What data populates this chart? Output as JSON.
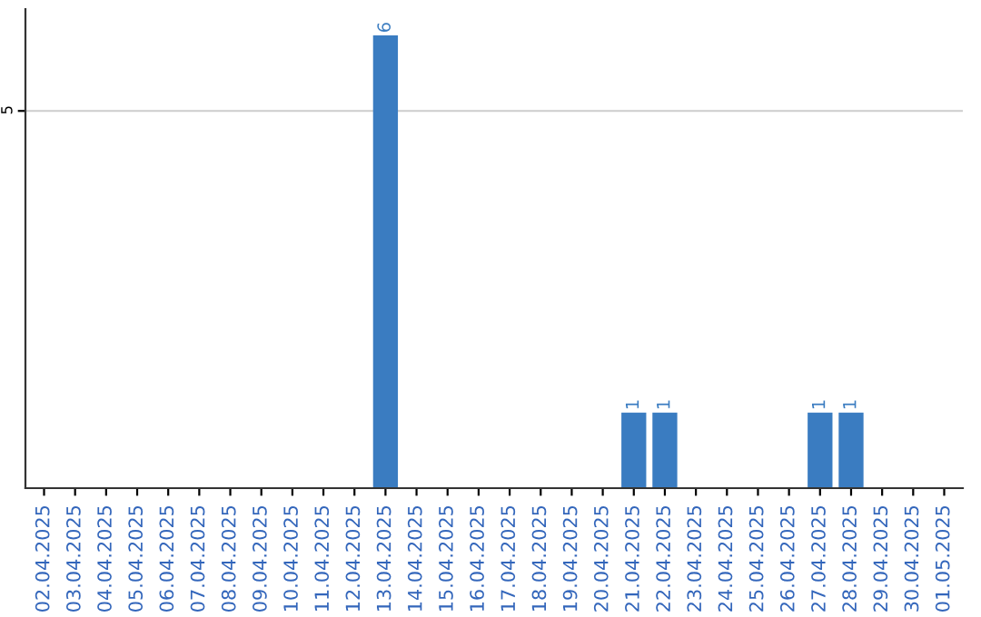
{
  "chart_data": {
    "type": "bar",
    "categories": [
      "02.04.2025",
      "03.04.2025",
      "04.04.2025",
      "05.04.2025",
      "06.04.2025",
      "07.04.2025",
      "08.04.2025",
      "09.04.2025",
      "10.04.2025",
      "11.04.2025",
      "12.04.2025",
      "13.04.2025",
      "14.04.2025",
      "15.04.2025",
      "16.04.2025",
      "17.04.2025",
      "18.04.2025",
      "19.04.2025",
      "20.04.2025",
      "21.04.2025",
      "22.04.2025",
      "23.04.2025",
      "24.04.2025",
      "25.04.2025",
      "26.04.2025",
      "27.04.2025",
      "28.04.2025",
      "29.04.2025",
      "30.04.2025",
      "01.05.2025"
    ],
    "values": [
      0,
      0,
      0,
      0,
      0,
      0,
      0,
      0,
      0,
      0,
      0,
      6,
      0,
      0,
      0,
      0,
      0,
      0,
      0,
      1,
      1,
      0,
      0,
      0,
      0,
      1,
      1,
      0,
      0,
      0
    ],
    "value_labels": [
      null,
      null,
      null,
      null,
      null,
      null,
      null,
      null,
      null,
      null,
      null,
      "6",
      null,
      null,
      null,
      null,
      null,
      null,
      null,
      "1",
      "1",
      null,
      null,
      null,
      null,
      "1",
      "1",
      null,
      null,
      null
    ],
    "color": "#3a7cc1",
    "ylim": [
      0,
      6.35
    ],
    "yticks": [
      5
    ],
    "grid": "y"
  }
}
